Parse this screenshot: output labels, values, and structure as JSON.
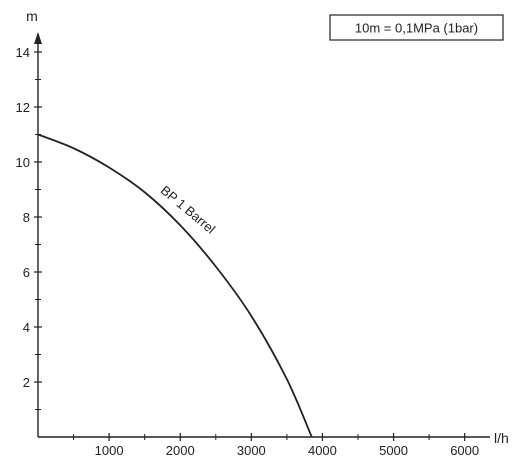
{
  "chart_data": {
    "type": "line",
    "title": "",
    "xlabel": "l/h",
    "ylabel": "m",
    "xlim": [
      0,
      6300
    ],
    "ylim": [
      0,
      14.8
    ],
    "x_ticks_major": [
      1000,
      2000,
      3000,
      4000,
      5000,
      6000
    ],
    "x_ticks_minor": [
      500,
      1500,
      2500,
      3500,
      4500,
      5500
    ],
    "y_ticks_major": [
      2,
      4,
      6,
      8,
      10,
      12,
      14
    ],
    "y_ticks_minor": [
      1,
      3,
      5,
      7,
      9,
      11,
      13
    ],
    "grid": false,
    "annotation": "10m = 0,1MPa (1bar)",
    "series": [
      {
        "name": "BP 1 Barrel",
        "x": [
          0,
          500,
          1000,
          1500,
          2000,
          2500,
          3000,
          3500,
          3850
        ],
        "y": [
          11.0,
          10.5,
          9.8,
          8.9,
          7.7,
          6.2,
          4.4,
          2.1,
          0
        ]
      }
    ]
  },
  "colors": {
    "line": "#222222",
    "background": "#ffffff"
  }
}
